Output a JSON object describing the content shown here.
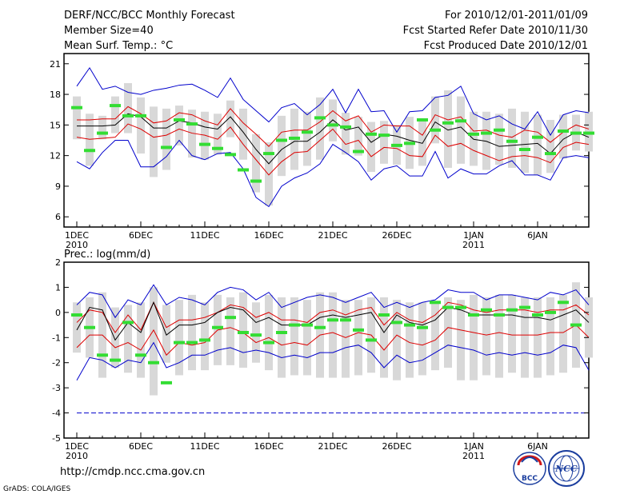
{
  "header": {
    "title": "DERF/NCC/BCC Monthly Forecast",
    "member_size": "Member Size=40",
    "variable": "Mean Surf. Temp.: °C",
    "period": "For 2010/12/01-2011/01/09",
    "refer_date": "Fcst Started Refer Date 2010/11/30",
    "produced_date": "Fcst Produced Date 2010/12/01"
  },
  "footer": {
    "url": "http://cmdp.ncc.cma.gov.cn",
    "grads_credit": "GrADS: COLA/IGES",
    "logo_bcc": "BCC",
    "logo_ncc": "NCC"
  },
  "colors": {
    "max_min": "#0000cc",
    "spread": "#dd0000",
    "mean": "#000000",
    "observed": "#33dd33",
    "box": "#d8d8d8"
  },
  "chart_data": [
    {
      "type": "box-line",
      "title": "Mean Surf. Temp.: °C",
      "ylim": [
        5,
        22
      ],
      "yticks": [
        6,
        9,
        12,
        15,
        18,
        21
      ],
      "xticks": [
        {
          "day": 1,
          "label": "1DEC",
          "sub": "2010"
        },
        {
          "day": 6,
          "label": "6DEC"
        },
        {
          "day": 11,
          "label": "11DEC"
        },
        {
          "day": 16,
          "label": "16DEC"
        },
        {
          "day": 21,
          "label": "21DEC"
        },
        {
          "day": 26,
          "label": "26DEC"
        },
        {
          "day": 32,
          "label": "1JAN",
          "sub": "2011"
        },
        {
          "day": 37,
          "label": "6JAN"
        }
      ],
      "series": [
        {
          "name": "max",
          "values": [
            18.8,
            20.6,
            18.5,
            18.8,
            18.2,
            18.0,
            18.4,
            18.6,
            18.9,
            19.0,
            18.4,
            17.7,
            19.6,
            17.5,
            16.4,
            15.3,
            16.7,
            17.1,
            16.0,
            17.0,
            18.5,
            16.2,
            18.5,
            16.3,
            16.4,
            14.3,
            16.3,
            16.4,
            17.7,
            17.9,
            18.8,
            16.1,
            15.5,
            15.9,
            15.1,
            14.6,
            16.3,
            14.0,
            16.0,
            16.4,
            16.2
          ]
        },
        {
          "name": "upper",
          "values": [
            15.5,
            15.5,
            15.6,
            15.6,
            16.8,
            16.1,
            15.2,
            15.4,
            16.2,
            16.0,
            15.4,
            15.0,
            16.6,
            15.2,
            14.1,
            12.9,
            14.3,
            14.5,
            14.5,
            15.3,
            16.4,
            15.4,
            15.9,
            14.3,
            15.0,
            14.9,
            14.9,
            14.0,
            16.0,
            15.5,
            15.8,
            14.4,
            14.5,
            14.0,
            13.8,
            14.5,
            14.3,
            13.3,
            14.3,
            15.0,
            14.6
          ]
        },
        {
          "name": "mean",
          "values": [
            14.9,
            14.9,
            14.9,
            15.0,
            16.1,
            15.8,
            14.7,
            14.7,
            15.4,
            15.2,
            14.8,
            14.6,
            15.8,
            14.3,
            12.6,
            11.2,
            12.6,
            13.4,
            13.4,
            14.3,
            15.5,
            14.5,
            14.8,
            13.3,
            14.1,
            13.9,
            13.5,
            13.2,
            15.3,
            14.5,
            14.8,
            13.6,
            13.4,
            12.9,
            13.0,
            13.1,
            13.2,
            12.2,
            13.6,
            14.3,
            13.8
          ]
        },
        {
          "name": "lower",
          "values": [
            13.8,
            13.6,
            13.7,
            13.8,
            15.1,
            14.6,
            13.8,
            14.0,
            14.6,
            14.2,
            14.0,
            13.6,
            14.8,
            13.1,
            11.6,
            10.1,
            11.4,
            12.3,
            12.4,
            13.5,
            14.6,
            13.1,
            13.5,
            11.9,
            12.8,
            12.7,
            12.0,
            11.9,
            14.0,
            12.9,
            13.2,
            12.5,
            12.0,
            11.5,
            11.9,
            12.0,
            11.8,
            11.3,
            12.8,
            13.3,
            13.1
          ]
        },
        {
          "name": "min",
          "values": [
            11.4,
            10.7,
            12.3,
            13.5,
            13.5,
            10.9,
            10.9,
            11.9,
            13.5,
            12.0,
            11.6,
            12.2,
            12.3,
            10.7,
            7.9,
            7.0,
            9.0,
            9.8,
            10.3,
            11.2,
            13.1,
            12.3,
            11.4,
            9.6,
            10.7,
            11.0,
            10.0,
            10.0,
            12.4,
            9.8,
            10.7,
            10.2,
            10.2,
            11.0,
            11.5,
            10.1,
            10.1,
            9.6,
            11.8,
            12.0,
            11.8
          ]
        },
        {
          "name": "box_top",
          "values": [
            17.8,
            16.1,
            15.9,
            17.8,
            19.1,
            17.7,
            16.8,
            16.6,
            16.9,
            16.5,
            16.3,
            16.1,
            17.4,
            16.6,
            14.1,
            13.3,
            15.9,
            16.6,
            16.3,
            17.7,
            17.5,
            16.2,
            15.8,
            15.3,
            15.4,
            15.0,
            15.8,
            15.6,
            17.8,
            18.4,
            17.8,
            16.3,
            16.3,
            16.1,
            16.6,
            16.3,
            16.0,
            15.5,
            16.0,
            16.0,
            16.3
          ]
        },
        {
          "name": "box_bottom",
          "values": [
            13.6,
            11.0,
            13.6,
            14.2,
            14.2,
            12.2,
            9.9,
            10.6,
            13.0,
            11.8,
            11.6,
            12.1,
            13.8,
            11.6,
            8.4,
            7.1,
            10.0,
            10.6,
            11.0,
            11.6,
            13.4,
            12.1,
            12.0,
            10.4,
            11.2,
            11.1,
            10.7,
            11.0,
            13.2,
            10.8,
            11.2,
            11.0,
            10.6,
            11.1,
            10.8,
            10.3,
            10.1,
            10.3,
            11.7,
            12.5,
            12.4
          ]
        },
        {
          "name": "observed",
          "values": [
            16.7,
            12.5,
            14.2,
            16.9,
            15.9,
            15.9,
            null,
            12.8,
            15.5,
            15.1,
            13.1,
            12.7,
            12.1,
            10.6,
            9.5,
            12.2,
            13.5,
            13.7,
            14.3,
            15.7,
            15.0,
            14.8,
            12.4,
            14.1,
            14.0,
            13.0,
            13.2,
            15.5,
            14.5,
            15.2,
            15.4,
            14.1,
            14.2,
            14.5,
            13.4,
            12.6,
            13.8,
            12.2,
            14.4,
            14.2,
            14.2
          ]
        }
      ]
    },
    {
      "type": "box-line",
      "title": "Prec.: log(mm/d)",
      "ylim": [
        -5,
        2
      ],
      "yticks": [
        -5,
        -4,
        -3,
        -2,
        -1,
        0,
        1,
        2
      ],
      "xticks": [
        {
          "day": 1,
          "label": "1DEC",
          "sub": "2010"
        },
        {
          "day": 6,
          "label": "6DEC"
        },
        {
          "day": 11,
          "label": "11DEC"
        },
        {
          "day": 16,
          "label": "16DEC"
        },
        {
          "day": 21,
          "label": "21DEC"
        },
        {
          "day": 26,
          "label": "26DEC"
        },
        {
          "day": 32,
          "label": "1JAN",
          "sub": "2011"
        },
        {
          "day": 37,
          "label": "6JAN"
        }
      ],
      "series": [
        {
          "name": "max",
          "values": [
            0.3,
            0.8,
            0.7,
            -0.2,
            0.5,
            0.3,
            1.1,
            0.3,
            0.6,
            0.5,
            0.3,
            0.8,
            1.0,
            0.9,
            0.5,
            0.8,
            0.2,
            0.4,
            0.6,
            0.7,
            0.6,
            0.4,
            0.6,
            0.8,
            0.2,
            0.4,
            0.2,
            0.4,
            0.5,
            0.9,
            0.8,
            0.8,
            0.5,
            0.7,
            0.7,
            0.6,
            0.5,
            0.8,
            0.7,
            0.9,
            0.3
          ]
        },
        {
          "name": "upper",
          "values": [
            -0.4,
            0.1,
            0.0,
            -0.8,
            -0.1,
            -0.7,
            0.4,
            -0.6,
            -0.3,
            -0.3,
            -0.2,
            0.0,
            0.3,
            0.2,
            -0.2,
            0.0,
            -0.3,
            -0.3,
            -0.4,
            0.0,
            0.1,
            -0.1,
            0.1,
            0.2,
            -0.5,
            0.0,
            -0.3,
            -0.4,
            -0.1,
            0.4,
            0.3,
            0.1,
            0.0,
            0.1,
            0.1,
            0.1,
            0.0,
            0.1,
            0.1,
            0.3,
            -0.1
          ]
        },
        {
          "name": "mean",
          "values": [
            -0.7,
            0.2,
            0.1,
            -1.1,
            -0.4,
            -0.8,
            0.4,
            -0.9,
            -0.5,
            -0.5,
            -0.4,
            0.0,
            0.2,
            0.1,
            -0.4,
            -0.2,
            -0.5,
            -0.5,
            -0.5,
            -0.2,
            -0.1,
            -0.2,
            -0.1,
            0.0,
            -0.8,
            -0.1,
            -0.4,
            -0.5,
            -0.3,
            0.2,
            0.1,
            -0.1,
            -0.1,
            -0.1,
            -0.1,
            -0.2,
            -0.2,
            -0.3,
            -0.1,
            0.1,
            -0.4
          ]
        },
        {
          "name": "lower",
          "values": [
            -1.4,
            -0.9,
            -0.9,
            -1.4,
            -1.2,
            -1.5,
            -0.7,
            -1.7,
            -1.2,
            -1.3,
            -1.2,
            -0.7,
            -0.6,
            -0.8,
            -1.2,
            -1.0,
            -1.3,
            -1.2,
            -1.3,
            -0.9,
            -0.8,
            -1.0,
            -0.8,
            -0.9,
            -1.5,
            -0.9,
            -1.2,
            -1.3,
            -1.1,
            -0.6,
            -0.7,
            -0.8,
            -0.9,
            -0.8,
            -0.9,
            -0.9,
            -0.9,
            -0.8,
            -0.8,
            -0.5,
            -1.0
          ]
        },
        {
          "name": "min",
          "values": [
            -2.7,
            -1.8,
            -1.9,
            -2.2,
            -1.9,
            -2.0,
            -1.2,
            -2.2,
            -2.0,
            -1.7,
            -1.7,
            -1.5,
            -1.4,
            -1.6,
            -1.5,
            -1.6,
            -1.8,
            -1.7,
            -1.8,
            -1.6,
            -1.6,
            -1.4,
            -1.3,
            -1.6,
            -2.2,
            -1.7,
            -2.0,
            -1.9,
            -1.6,
            -1.3,
            -1.4,
            -1.5,
            -1.7,
            -1.6,
            -1.7,
            -1.6,
            -1.7,
            -1.6,
            -1.3,
            -1.4,
            -2.3
          ]
        },
        {
          "name": "box_top",
          "values": [
            0.4,
            0.6,
            0.8,
            0.2,
            0.3,
            0.4,
            1.0,
            0.3,
            0.5,
            0.7,
            0.4,
            0.7,
            0.6,
            0.8,
            0.4,
            0.7,
            0.6,
            0.6,
            0.5,
            0.8,
            0.8,
            0.5,
            0.5,
            0.6,
            0.6,
            0.5,
            0.4,
            0.4,
            0.4,
            0.6,
            0.5,
            0.7,
            0.6,
            0.7,
            0.7,
            0.6,
            0.6,
            0.6,
            0.7,
            1.2,
            0.6
          ]
        },
        {
          "name": "box_bottom",
          "values": [
            -1.6,
            -1.8,
            -2.6,
            -2.2,
            -2.4,
            -2.6,
            -3.3,
            -2.0,
            -2.5,
            -2.3,
            -2.3,
            -2.1,
            -2.1,
            -2.2,
            -2.0,
            -2.3,
            -2.6,
            -2.5,
            -2.5,
            -2.6,
            -2.6,
            -2.6,
            -2.5,
            -2.4,
            -2.6,
            -2.7,
            -2.6,
            -2.5,
            -2.3,
            -2.2,
            -2.7,
            -2.7,
            -2.5,
            -2.6,
            -2.4,
            -2.6,
            -2.6,
            -2.5,
            -2.4,
            -2.2,
            -1.8
          ]
        },
        {
          "name": "observed",
          "values": [
            -0.1,
            -0.6,
            -1.7,
            -1.9,
            -0.4,
            -1.7,
            -2.0,
            -2.8,
            -1.2,
            -1.2,
            -1.1,
            -0.6,
            -0.2,
            -0.8,
            -0.9,
            -1.2,
            -0.8,
            -0.5,
            -0.5,
            -0.6,
            -0.3,
            -0.3,
            -0.7,
            -1.1,
            -0.1,
            -0.4,
            -0.5,
            -0.6,
            0.4,
            0.2,
            0.2,
            -0.1,
            0.1,
            -0.1,
            0.1,
            0.2,
            -0.1,
            0.0,
            0.4,
            -0.5,
            null
          ]
        },
        {
          "name": "floor",
          "values": [
            -4,
            -4
          ]
        }
      ]
    }
  ]
}
